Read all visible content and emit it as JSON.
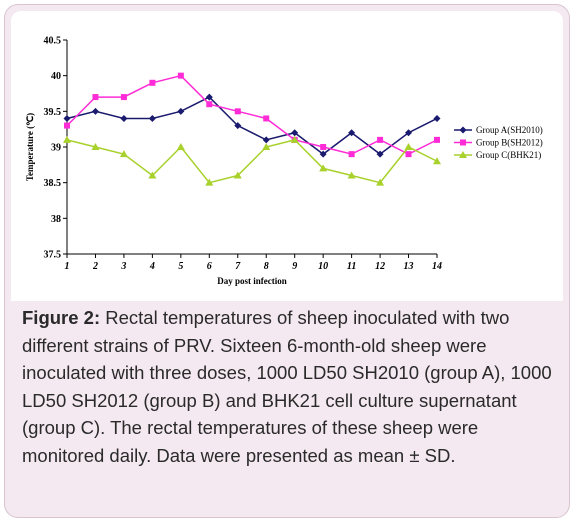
{
  "chart_data": {
    "type": "line",
    "xlabel": "Day post infection",
    "ylabel": "Temperature (℃)",
    "x": [
      1,
      2,
      3,
      4,
      5,
      6,
      7,
      8,
      9,
      10,
      11,
      12,
      13,
      14
    ],
    "ylim": [
      37.5,
      40.5
    ],
    "yticks": [
      37.5,
      38,
      38.5,
      39,
      39.5,
      40,
      40.5
    ],
    "ytick_labels": [
      "37.5",
      "38",
      "38.5",
      "39",
      "39.5",
      "40",
      "40.5"
    ],
    "xtick_labels": [
      "1",
      "2",
      "3",
      "4",
      "5",
      "6",
      "7",
      "8",
      "9",
      "10",
      "11",
      "12",
      "13",
      "14"
    ],
    "legend_position": "right",
    "series": [
      {
        "name": "Group A(SH2010)",
        "color": "#1a1a6e",
        "marker": "diamond",
        "values": [
          39.4,
          39.5,
          39.4,
          39.4,
          39.5,
          39.7,
          39.3,
          39.1,
          39.2,
          38.9,
          39.2,
          38.9,
          39.2,
          39.4
        ]
      },
      {
        "name": "Group B(SH2012)",
        "color": "#ff2bd6",
        "marker": "square",
        "values": [
          39.3,
          39.7,
          39.7,
          39.9,
          40.0,
          39.6,
          39.5,
          39.4,
          39.1,
          39.0,
          38.9,
          39.1,
          38.9,
          39.1
        ]
      },
      {
        "name": "Group C(BHK21)",
        "color": "#a8d12b",
        "marker": "triangle",
        "values": [
          39.1,
          39.0,
          38.9,
          38.6,
          39.0,
          38.5,
          38.6,
          39.0,
          39.1,
          38.7,
          38.6,
          38.5,
          39.0,
          38.8
        ]
      }
    ]
  },
  "caption": {
    "label": "Figure 2:",
    "text": " Rectal temperatures of sheep inoculated with two different strains of PRV. Sixteen 6-month-old sheep were inoculated with three doses, 1000 LD50 SH2010 (group A), 1000 LD50 SH2012 (group B) and BHK21 cell culture supernatant (group C). The rectal temperatures of these sheep were monitored daily. Data were presented as mean ± SD."
  }
}
